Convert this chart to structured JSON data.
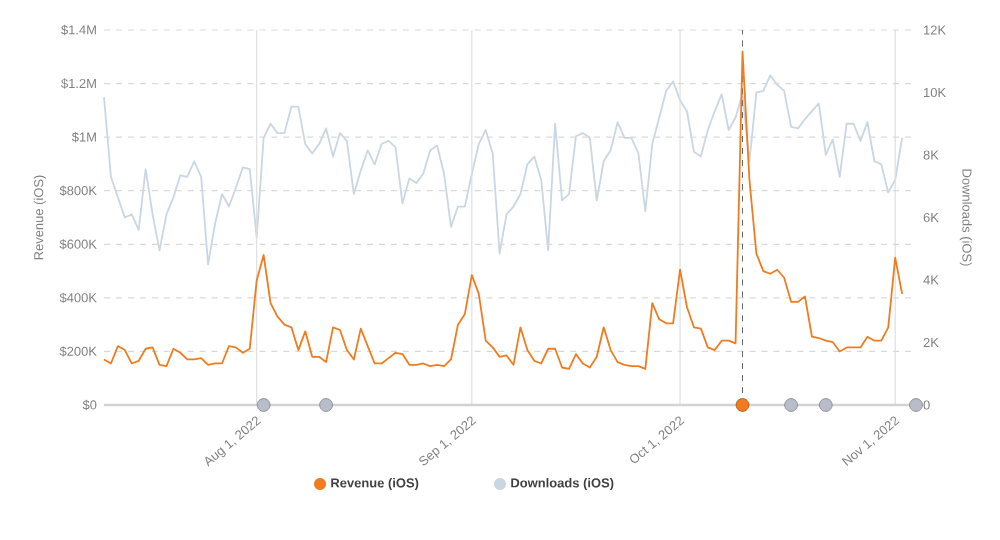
{
  "chart_data": {
    "type": "line",
    "ylabel": "Revenue (iOS)",
    "y2label": "Downloads (iOS)",
    "x": [
      "2022-07-10",
      "2022-07-11",
      "2022-07-12",
      "2022-07-13",
      "2022-07-14",
      "2022-07-15",
      "2022-07-16",
      "2022-07-17",
      "2022-07-18",
      "2022-07-19",
      "2022-07-20",
      "2022-07-21",
      "2022-07-22",
      "2022-07-23",
      "2022-07-24",
      "2022-07-25",
      "2022-07-26",
      "2022-07-27",
      "2022-07-28",
      "2022-07-29",
      "2022-07-30",
      "2022-07-31",
      "2022-08-01",
      "2022-08-02",
      "2022-08-03",
      "2022-08-04",
      "2022-08-05",
      "2022-08-06",
      "2022-08-07",
      "2022-08-08",
      "2022-08-09",
      "2022-08-10",
      "2022-08-11",
      "2022-08-12",
      "2022-08-13",
      "2022-08-14",
      "2022-08-15",
      "2022-08-16",
      "2022-08-17",
      "2022-08-18",
      "2022-08-19",
      "2022-08-20",
      "2022-08-21",
      "2022-08-22",
      "2022-08-23",
      "2022-08-24",
      "2022-08-25",
      "2022-08-26",
      "2022-08-27",
      "2022-08-28",
      "2022-08-29",
      "2022-08-30",
      "2022-08-31",
      "2022-09-01",
      "2022-09-02",
      "2022-09-03",
      "2022-09-04",
      "2022-09-05",
      "2022-09-06",
      "2022-09-07",
      "2022-09-08",
      "2022-09-09",
      "2022-09-10",
      "2022-09-11",
      "2022-09-12",
      "2022-09-13",
      "2022-09-14",
      "2022-09-15",
      "2022-09-16",
      "2022-09-17",
      "2022-09-18",
      "2022-09-19",
      "2022-09-20",
      "2022-09-21",
      "2022-09-22",
      "2022-09-23",
      "2022-09-24",
      "2022-09-25",
      "2022-09-26",
      "2022-09-27",
      "2022-09-28",
      "2022-09-29",
      "2022-09-30",
      "2022-10-01",
      "2022-10-02",
      "2022-10-03",
      "2022-10-04",
      "2022-10-05",
      "2022-10-06",
      "2022-10-07",
      "2022-10-08",
      "2022-10-09",
      "2022-10-10",
      "2022-10-11",
      "2022-10-12",
      "2022-10-13",
      "2022-10-14",
      "2022-10-15",
      "2022-10-16",
      "2022-10-17",
      "2022-10-18",
      "2022-10-19",
      "2022-10-20",
      "2022-10-21",
      "2022-10-22",
      "2022-10-23",
      "2022-10-24",
      "2022-10-25",
      "2022-10-26",
      "2022-10-27",
      "2022-10-28",
      "2022-10-29",
      "2022-10-30",
      "2022-10-31",
      "2022-11-01",
      "2022-11-02"
    ],
    "series": [
      {
        "name": "Downloads (iOS)",
        "color": "#c9d6e3",
        "axis": "y2",
        "values": [
          9850,
          7300,
          6650,
          6000,
          6100,
          5600,
          7550,
          6100,
          4950,
          6100,
          6650,
          7350,
          7300,
          7800,
          7300,
          4500,
          5800,
          6750,
          6350,
          6950,
          7600,
          7550,
          5350,
          8550,
          9000,
          8700,
          8700,
          9550,
          9550,
          8350,
          8050,
          8350,
          8850,
          7950,
          8700,
          8450,
          6750,
          7500,
          8150,
          7700,
          8350,
          8450,
          8250,
          6450,
          7250,
          7100,
          7400,
          8150,
          8300,
          7400,
          5700,
          6350,
          6350,
          7400,
          8350,
          8800,
          8050,
          4850,
          6100,
          6350,
          6750,
          7700,
          7950,
          7200,
          4950,
          9000,
          6550,
          6750,
          8600,
          8700,
          8550,
          6550,
          7800,
          8150,
          9050,
          8550,
          8550,
          8050,
          6200,
          8350,
          9200,
          10050,
          10350,
          9750,
          9400,
          8100,
          7950,
          8800,
          9400,
          9950,
          8800,
          9200,
          9950,
          7800,
          10000,
          10050,
          10550,
          10250,
          10050,
          8900,
          8850,
          9150,
          9400,
          9650,
          8000,
          8500,
          7300,
          9000,
          9000,
          8450,
          9050,
          7800,
          7700,
          6800,
          7200,
          8550
        ]
      },
      {
        "name": "Revenue (iOS)",
        "color": "#f07c1f",
        "values": [
          170000,
          155000,
          220000,
          205000,
          155000,
          165000,
          210000,
          215000,
          150000,
          145000,
          210000,
          195000,
          170000,
          170000,
          175000,
          150000,
          155000,
          155000,
          220000,
          215000,
          195000,
          210000,
          465000,
          560000,
          380000,
          330000,
          300000,
          290000,
          205000,
          275000,
          180000,
          180000,
          160000,
          290000,
          280000,
          205000,
          170000,
          285000,
          220000,
          155000,
          155000,
          175000,
          195000,
          190000,
          150000,
          150000,
          155000,
          145000,
          150000,
          145000,
          170000,
          300000,
          340000,
          485000,
          415000,
          240000,
          215000,
          180000,
          185000,
          150000,
          290000,
          205000,
          165000,
          155000,
          210000,
          210000,
          140000,
          135000,
          190000,
          155000,
          140000,
          180000,
          290000,
          205000,
          160000,
          150000,
          145000,
          145000,
          135000,
          380000,
          320000,
          305000,
          305000,
          505000,
          365000,
          290000,
          285000,
          215000,
          205000,
          240000,
          240000,
          230000,
          1320000,
          840000,
          565000,
          500000,
          490000,
          505000,
          475000,
          385000,
          385000,
          405000,
          255000,
          250000,
          240000,
          235000,
          200000,
          215000,
          215000,
          215000,
          255000,
          240000,
          240000,
          290000,
          550000,
          415000
        ]
      },
      {
        "type": "scatter",
        "x": [
          "2022-08-02",
          "2022-08-11",
          "2022-10-10",
          "2022-10-17",
          "2022-10-22",
          "2022-11-04"
        ],
        "values": [
          0,
          0,
          0,
          0,
          0,
          0
        ],
        "colors": [
          "#b9bdc9",
          "#b9bdc9",
          "#f07c1f",
          "#b9bdc9",
          "#b9bdc9",
          "#b9bdc9"
        ]
      }
    ],
    "xlim": [
      "2022-07-10",
      "2022-11-04"
    ],
    "xticks": [
      {
        "value": "2022-08-01",
        "label": "Aug 1, 2022"
      },
      {
        "value": "2022-09-01",
        "label": "Sep 1, 2022"
      },
      {
        "value": "2022-10-01",
        "label": "Oct 1, 2022"
      },
      {
        "value": "2022-11-01",
        "label": "Nov 1, 2022"
      }
    ],
    "ylim": [
      0,
      1400000
    ],
    "yticks": [
      {
        "value": 0,
        "label": "$0"
      },
      {
        "value": 200000,
        "label": "$200K"
      },
      {
        "value": 400000,
        "label": "$400K"
      },
      {
        "value": 600000,
        "label": "$600K"
      },
      {
        "value": 800000,
        "label": "$800K"
      },
      {
        "value": 1000000,
        "label": "$1M"
      },
      {
        "value": 1200000,
        "label": "$1.2M"
      },
      {
        "value": 1400000,
        "label": "$1.4M"
      }
    ],
    "y2lim": [
      0,
      12000
    ],
    "y2ticks": [
      0,
      {
        "value": 2000,
        "label": "2K"
      },
      {
        "value": 4000,
        "label": "4K"
      },
      {
        "value": 6000,
        "label": "6K"
      },
      {
        "value": 8000,
        "label": "8K"
      },
      {
        "value": 10000,
        "label": "10K"
      },
      {
        "value": 12000,
        "label": "12K"
      }
    ],
    "ref_lines": [
      {
        "axis": "x",
        "value": "2022-10-10",
        "color": "#666666",
        "line_style": "dashed"
      }
    ],
    "grid": true,
    "legend": "bottom"
  }
}
